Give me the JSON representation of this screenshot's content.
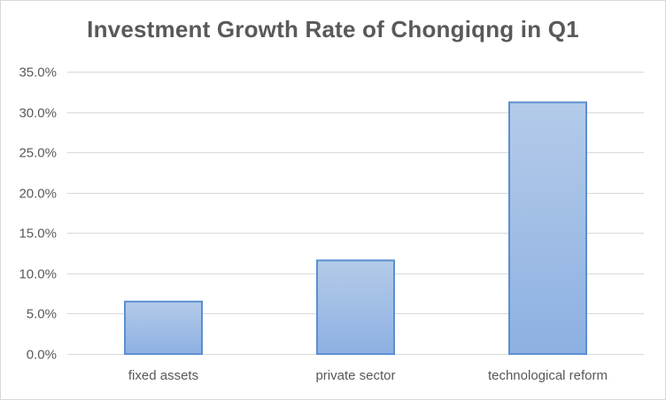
{
  "chart_data": {
    "type": "bar",
    "title": "Investment Growth Rate of Chongiqng in Q1",
    "categories": [
      "fixed assets",
      "private sector",
      "technological reform"
    ],
    "values": [
      6.5,
      11.6,
      31.2
    ],
    "ylim": [
      0,
      35
    ],
    "yticks": [
      "0.0%",
      "5.0%",
      "10.0%",
      "15.0%",
      "20.0%",
      "25.0%",
      "30.0%",
      "35.0%"
    ],
    "ytick_values": [
      0,
      5,
      10,
      15,
      20,
      25,
      30,
      35
    ],
    "xlabel": "",
    "ylabel": "",
    "grid": true,
    "legend": "none",
    "colors": {
      "bar_top": "#b4cbe9",
      "bar_bottom": "#8db0e2",
      "bar_edge": "#5b8fd1",
      "grid": "#d9d9d9",
      "text": "#595959"
    }
  }
}
